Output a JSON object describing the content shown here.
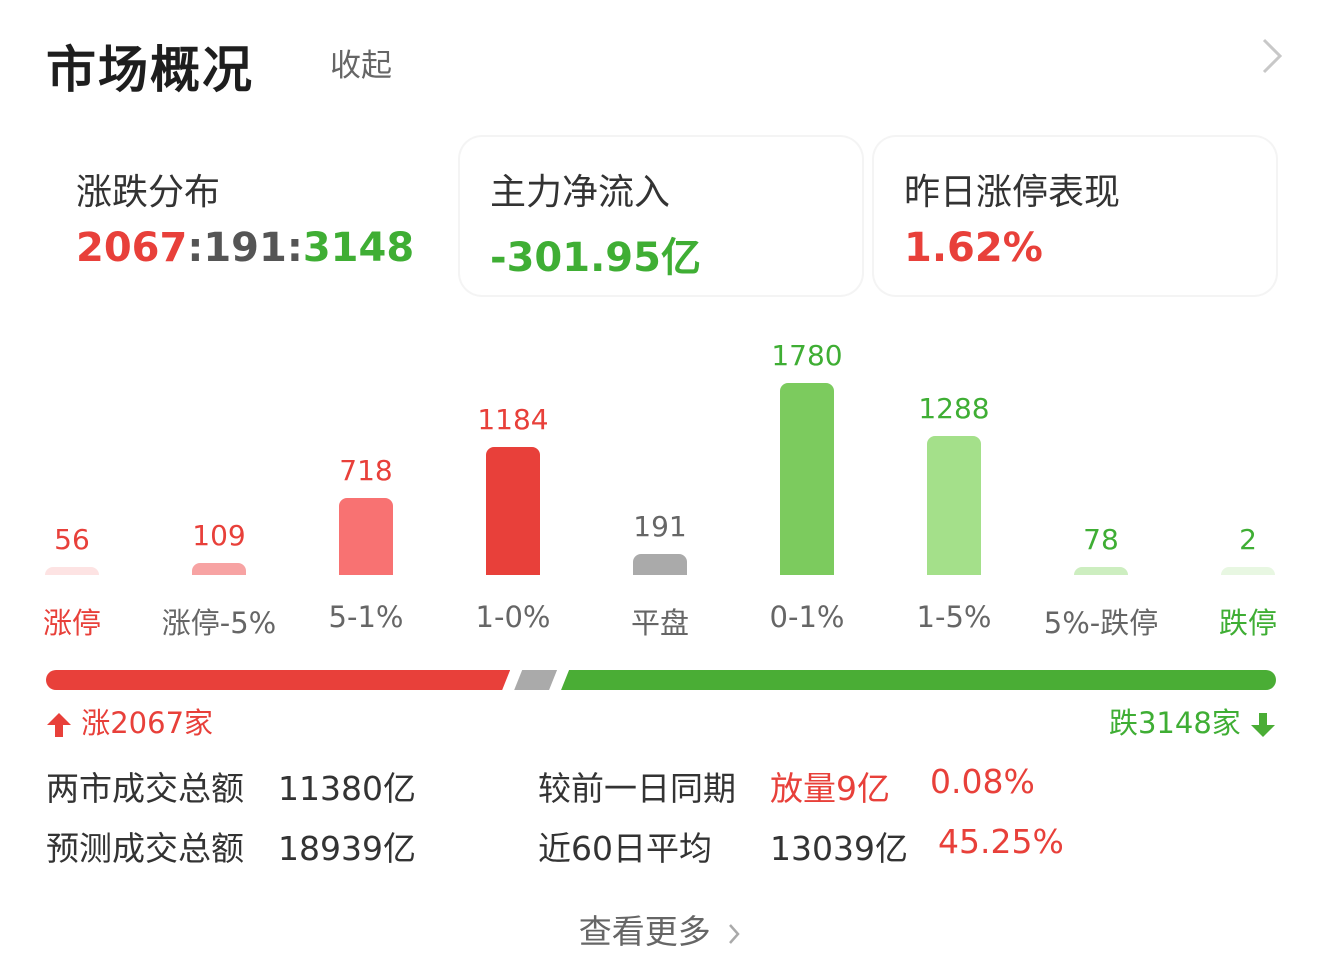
{
  "header": {
    "title": "市场概况",
    "collapse": "收起"
  },
  "cards": [
    {
      "label": "涨跌分布",
      "value_up": "2067",
      "sep1": ":",
      "value_flat": "191",
      "sep2": ":",
      "value_down": "3148"
    },
    {
      "label": "主力净流入",
      "value": "-301.95亿"
    },
    {
      "label": "昨日涨停表现",
      "value": "1.62%"
    }
  ],
  "chart_data": {
    "type": "bar",
    "categories": [
      "涨停",
      "涨停-5%",
      "5-1%",
      "1-0%",
      "平盘",
      "0-1%",
      "1-5%",
      "5%-跌停",
      "跌停"
    ],
    "values": [
      56,
      109,
      718,
      1184,
      191,
      1780,
      1288,
      78,
      2
    ],
    "labels": [
      "56",
      "109",
      "718",
      "1184",
      "191",
      "1780",
      "1288",
      "78",
      "2"
    ],
    "colors": [
      "#fde3e3",
      "#f7a3a3",
      "#f87272",
      "#e8403a",
      "#aaaaaa",
      "#7ccb5e",
      "#a4e08a",
      "#cdeec0",
      "#e8f7e2"
    ]
  },
  "ratio": {
    "up_count": 2067,
    "flat_count": 191,
    "down_count": 3148,
    "up_label": "涨2067家",
    "down_label": "跌3148家",
    "up_color": "#e8403a",
    "flat_color": "#aaaaaa",
    "down_color": "#4aad35"
  },
  "stats": {
    "row1": {
      "label": "两市成交总额",
      "value": "11380亿",
      "label2": "较前一日同期",
      "change": "放量9亿",
      "pct": "0.08%"
    },
    "row2": {
      "label": "预测成交总额",
      "value": "18939亿",
      "label2": "近60日平均",
      "avg": "13039亿",
      "pct": "45.25%"
    }
  },
  "more": "查看更多"
}
